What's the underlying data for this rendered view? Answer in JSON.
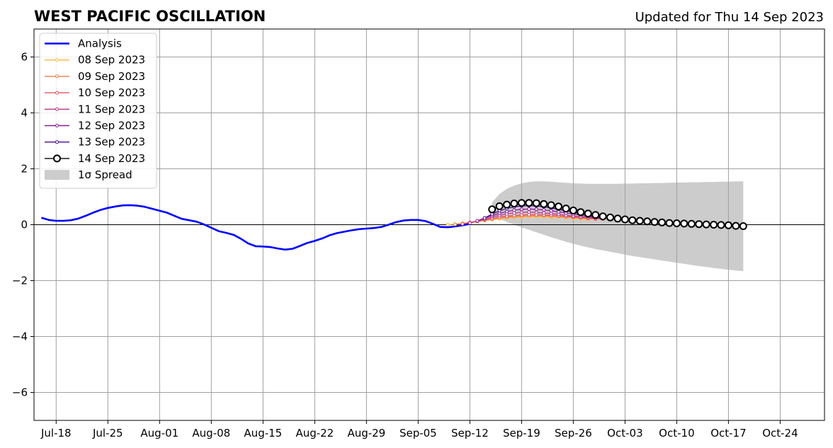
{
  "title": "WEST PACIFIC OSCILLATION",
  "updated": "Updated for Thu 14 Sep 2023",
  "colors": {
    "analysis": "#0000ff",
    "spread": "#cccccc",
    "grid": "#a0a0a0",
    "zero_line": "#000000"
  },
  "chart_data": {
    "type": "line",
    "title": "WEST PACIFIC OSCILLATION",
    "xlabel": "",
    "ylabel": "",
    "xlim": [
      "2023-07-15",
      "2023-10-30"
    ],
    "ylim": [
      -7,
      7
    ],
    "grid": true,
    "legend_position": "top-left",
    "xticks": [
      {
        "date": "2023-07-18",
        "label": "Jul-18"
      },
      {
        "date": "2023-07-25",
        "label": "Jul-25"
      },
      {
        "date": "2023-08-01",
        "label": "Aug-01"
      },
      {
        "date": "2023-08-08",
        "label": "Aug-08"
      },
      {
        "date": "2023-08-15",
        "label": "Aug-15"
      },
      {
        "date": "2023-08-22",
        "label": "Aug-22"
      },
      {
        "date": "2023-08-29",
        "label": "Aug-29"
      },
      {
        "date": "2023-09-05",
        "label": "Sep-05"
      },
      {
        "date": "2023-09-12",
        "label": "Sep-12"
      },
      {
        "date": "2023-09-19",
        "label": "Sep-19"
      },
      {
        "date": "2023-09-26",
        "label": "Sep-26"
      },
      {
        "date": "2023-10-03",
        "label": "Oct-03"
      },
      {
        "date": "2023-10-10",
        "label": "Oct-10"
      },
      {
        "date": "2023-10-17",
        "label": "Oct-17"
      },
      {
        "date": "2023-10-24",
        "label": "Oct-24"
      }
    ],
    "yticks": [
      {
        "value": 6,
        "label": "6"
      },
      {
        "value": 4,
        "label": "4"
      },
      {
        "value": 2,
        "label": "2"
      },
      {
        "value": 0,
        "label": "0"
      },
      {
        "value": -2,
        "label": "−2"
      },
      {
        "value": -4,
        "label": "−4"
      },
      {
        "value": -6,
        "label": "−6"
      }
    ],
    "analysis": {
      "name": "Analysis",
      "color": "#0000ff",
      "points": [
        [
          "2023-07-16",
          0.25
        ],
        [
          "2023-07-17",
          0.17
        ],
        [
          "2023-07-18",
          0.14
        ],
        [
          "2023-07-19",
          0.14
        ],
        [
          "2023-07-20",
          0.16
        ],
        [
          "2023-07-21",
          0.22
        ],
        [
          "2023-07-22",
          0.32
        ],
        [
          "2023-07-23",
          0.43
        ],
        [
          "2023-07-24",
          0.53
        ],
        [
          "2023-07-25",
          0.6
        ],
        [
          "2023-07-26",
          0.65
        ],
        [
          "2023-07-27",
          0.69
        ],
        [
          "2023-07-28",
          0.7
        ],
        [
          "2023-07-29",
          0.68
        ],
        [
          "2023-07-30",
          0.64
        ],
        [
          "2023-07-31",
          0.57
        ],
        [
          "2023-08-01",
          0.5
        ],
        [
          "2023-08-02",
          0.43
        ],
        [
          "2023-08-03",
          0.32
        ],
        [
          "2023-08-04",
          0.21
        ],
        [
          "2023-08-05",
          0.16
        ],
        [
          "2023-08-06",
          0.11
        ],
        [
          "2023-08-07",
          0.01
        ],
        [
          "2023-08-08",
          -0.11
        ],
        [
          "2023-08-09",
          -0.23
        ],
        [
          "2023-08-10",
          -0.29
        ],
        [
          "2023-08-11",
          -0.36
        ],
        [
          "2023-08-12",
          -0.5
        ],
        [
          "2023-08-13",
          -0.67
        ],
        [
          "2023-08-14",
          -0.77
        ],
        [
          "2023-08-15",
          -0.78
        ],
        [
          "2023-08-16",
          -0.8
        ],
        [
          "2023-08-17",
          -0.85
        ],
        [
          "2023-08-18",
          -0.89
        ],
        [
          "2023-08-19",
          -0.86
        ],
        [
          "2023-08-20",
          -0.76
        ],
        [
          "2023-08-21",
          -0.65
        ],
        [
          "2023-08-22",
          -0.58
        ],
        [
          "2023-08-23",
          -0.49
        ],
        [
          "2023-08-24",
          -0.38
        ],
        [
          "2023-08-25",
          -0.3
        ],
        [
          "2023-08-26",
          -0.25
        ],
        [
          "2023-08-27",
          -0.2
        ],
        [
          "2023-08-28",
          -0.16
        ],
        [
          "2023-08-29",
          -0.14
        ],
        [
          "2023-08-30",
          -0.12
        ],
        [
          "2023-08-31",
          -0.08
        ],
        [
          "2023-09-01",
          0.0
        ],
        [
          "2023-09-02",
          0.09
        ],
        [
          "2023-09-03",
          0.15
        ],
        [
          "2023-09-04",
          0.17
        ],
        [
          "2023-09-05",
          0.17
        ],
        [
          "2023-09-06",
          0.13
        ],
        [
          "2023-09-07",
          0.03
        ],
        [
          "2023-09-08",
          -0.08
        ],
        [
          "2023-09-09",
          -0.09
        ],
        [
          "2023-09-10",
          -0.06
        ],
        [
          "2023-09-11",
          -0.02
        ],
        [
          "2023-09-12",
          0.03
        ]
      ]
    },
    "series": [
      {
        "name": "08 Sep 2023",
        "color": "#f9b941",
        "start": "2023-09-09",
        "values": [
          0.0,
          0.02,
          0.05,
          0.08,
          0.11,
          0.15,
          0.18,
          0.21,
          0.24,
          0.26,
          0.27,
          0.28,
          0.28,
          0.28,
          0.27,
          0.26,
          0.25,
          0.23,
          0.21,
          0.19
        ]
      },
      {
        "name": "09 Sep 2023",
        "color": "#ef7e45",
        "start": "2023-09-10",
        "values": [
          0.01,
          0.04,
          0.08,
          0.12,
          0.16,
          0.2,
          0.24,
          0.27,
          0.29,
          0.31,
          0.32,
          0.32,
          0.32,
          0.31,
          0.3,
          0.28,
          0.26,
          0.24,
          0.22,
          0.2
        ]
      },
      {
        "name": "10 Sep 2023",
        "color": "#e05565",
        "start": "2023-09-11",
        "values": [
          0.03,
          0.08,
          0.13,
          0.18,
          0.23,
          0.28,
          0.31,
          0.33,
          0.35,
          0.36,
          0.36,
          0.35,
          0.34,
          0.32,
          0.3,
          0.28,
          0.26,
          0.24,
          0.22,
          0.2
        ]
      },
      {
        "name": "11 Sep 2023",
        "color": "#bd3786",
        "start": "2023-09-12",
        "values": [
          0.06,
          0.13,
          0.2,
          0.28,
          0.34,
          0.39,
          0.42,
          0.44,
          0.45,
          0.44,
          0.42,
          0.4,
          0.37,
          0.34,
          0.31,
          0.28,
          0.26,
          0.24,
          0.22
        ]
      },
      {
        "name": "12 Sep 2023",
        "color": "#8b1a9b",
        "start": "2023-09-13",
        "values": [
          0.14,
          0.24,
          0.33,
          0.41,
          0.47,
          0.52,
          0.55,
          0.56,
          0.55,
          0.53,
          0.5,
          0.46,
          0.42,
          0.38,
          0.34,
          0.3,
          0.27,
          0.24
        ]
      },
      {
        "name": "13 Sep 2023",
        "color": "#4b0c8b",
        "start": "2023-09-14",
        "values": [
          0.24,
          0.38,
          0.5,
          0.58,
          0.64,
          0.67,
          0.68,
          0.67,
          0.64,
          0.6,
          0.55,
          0.5,
          0.44,
          0.39,
          0.34,
          0.3,
          0.26
        ]
      },
      {
        "name": "14 Sep 2023",
        "color": "#000000",
        "marker": "hollow-circle",
        "start": "2023-09-15",
        "values": [
          0.55,
          0.66,
          0.72,
          0.76,
          0.78,
          0.78,
          0.77,
          0.74,
          0.7,
          0.65,
          0.58,
          0.51,
          0.45,
          0.4,
          0.35,
          0.3,
          0.26,
          0.22,
          0.19,
          0.16,
          0.14,
          0.12,
          0.1,
          0.08,
          0.06,
          0.05,
          0.04,
          0.03,
          0.02,
          0.01,
          0.0,
          -0.01,
          -0.02,
          -0.04,
          -0.05
        ]
      }
    ],
    "spread": {
      "name": "1σ Spread",
      "color": "#cccccc",
      "start": "2023-09-15",
      "upper": [
        0.8,
        1.1,
        1.28,
        1.4,
        1.48,
        1.53,
        1.55,
        1.55,
        1.54,
        1.52,
        1.5,
        1.48,
        1.47,
        1.46,
        1.46,
        1.46,
        1.46,
        1.46,
        1.47,
        1.47,
        1.48,
        1.48,
        1.49,
        1.49,
        1.5,
        1.51,
        1.51,
        1.52,
        1.52,
        1.53,
        1.53,
        1.54,
        1.54,
        1.55,
        1.55
      ],
      "lower": [
        0.3,
        0.2,
        0.1,
        0.0,
        -0.1,
        -0.18,
        -0.27,
        -0.36,
        -0.45,
        -0.53,
        -0.61,
        -0.68,
        -0.75,
        -0.81,
        -0.87,
        -0.92,
        -0.97,
        -1.02,
        -1.07,
        -1.12,
        -1.16,
        -1.2,
        -1.24,
        -1.28,
        -1.32,
        -1.36,
        -1.4,
        -1.44,
        -1.48,
        -1.51,
        -1.55,
        -1.58,
        -1.61,
        -1.64,
        -1.66
      ]
    }
  },
  "legend": {
    "items": [
      {
        "label": "Analysis"
      },
      {
        "label": "08 Sep 2023"
      },
      {
        "label": "09 Sep 2023"
      },
      {
        "label": "10 Sep 2023"
      },
      {
        "label": "11 Sep 2023"
      },
      {
        "label": "12 Sep 2023"
      },
      {
        "label": "13 Sep 2023"
      },
      {
        "label": "14 Sep 2023"
      },
      {
        "label": "1σ Spread"
      }
    ]
  }
}
